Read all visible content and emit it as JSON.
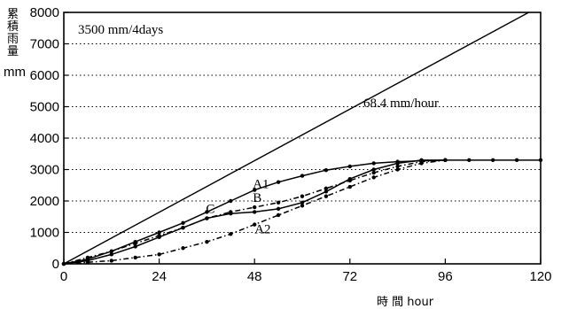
{
  "chart_data": {
    "type": "line",
    "title": "3500 mm/4days",
    "xlabel": "時 間 hour",
    "ylabel": "累積雨量",
    "yunit": "mm",
    "xlim": [
      0,
      120
    ],
    "ylim": [
      0,
      8000
    ],
    "xticks": [
      0,
      24,
      48,
      72,
      96,
      120
    ],
    "yticks": [
      0,
      1000,
      2000,
      3000,
      4000,
      5000,
      6000,
      7000,
      8000
    ],
    "grid": "dotted horizontal",
    "reference_line": {
      "label": "68.4 mm/hour",
      "x": [
        0,
        117
      ],
      "y": [
        0,
        8000
      ]
    },
    "series": [
      {
        "name": "A1",
        "style": "solid-dot",
        "x": [
          0,
          6,
          12,
          18,
          24,
          30,
          36,
          42,
          48,
          54,
          60,
          66,
          72,
          78,
          84,
          90,
          96,
          102,
          108,
          114,
          120
        ],
        "y": [
          0,
          150,
          400,
          700,
          1000,
          1300,
          1650,
          2000,
          2350,
          2600,
          2800,
          2980,
          3100,
          3200,
          3250,
          3280,
          3300,
          3300,
          3300,
          3300,
          3300
        ]
      },
      {
        "name": "B",
        "style": "dash-dot",
        "x": [
          0,
          6,
          12,
          18,
          24,
          30,
          36,
          42,
          48,
          54,
          60,
          66,
          72,
          78,
          84,
          90,
          96
        ],
        "y": [
          0,
          200,
          400,
          650,
          900,
          1150,
          1450,
          1650,
          1800,
          1950,
          2150,
          2400,
          2650,
          2900,
          3100,
          3250,
          3300
        ]
      },
      {
        "name": "C",
        "style": "solid-dot",
        "x": [
          0,
          6,
          12,
          18,
          24,
          30,
          36,
          42,
          48,
          54,
          60,
          66,
          72,
          78,
          84,
          90,
          96
        ],
        "y": [
          0,
          100,
          300,
          550,
          850,
          1150,
          1450,
          1600,
          1650,
          1750,
          1950,
          2300,
          2700,
          3000,
          3200,
          3300,
          3300
        ]
      },
      {
        "name": "A2",
        "style": "dash-dot",
        "x": [
          0,
          6,
          12,
          18,
          24,
          30,
          36,
          42,
          48,
          54,
          60,
          66,
          72,
          78,
          84,
          90,
          96
        ],
        "y": [
          0,
          50,
          100,
          200,
          300,
          500,
          700,
          950,
          1250,
          1550,
          1850,
          2150,
          2450,
          2750,
          3000,
          3200,
          3300
        ]
      }
    ]
  }
}
